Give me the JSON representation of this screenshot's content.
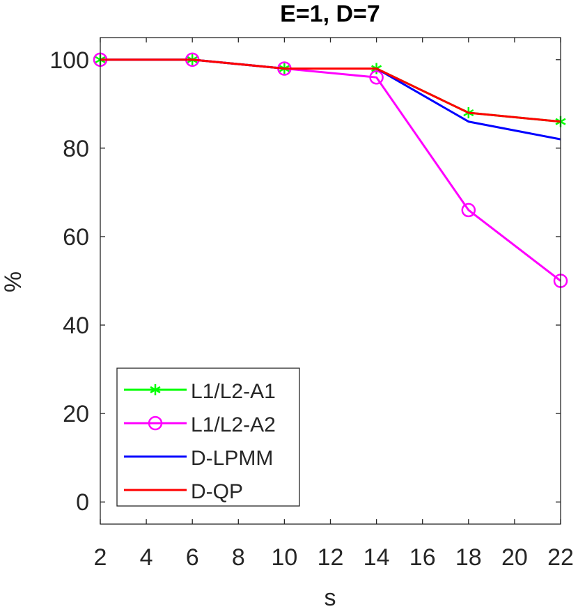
{
  "chart_data": {
    "type": "line",
    "title": "E=1, D=7",
    "xlabel": "s",
    "ylabel": "%",
    "xlim": [
      2,
      22
    ],
    "ylim": [
      -5,
      105
    ],
    "xticks": [
      2,
      4,
      6,
      8,
      10,
      12,
      14,
      16,
      18,
      20,
      22
    ],
    "yticks": [
      0,
      20,
      40,
      60,
      80,
      100
    ],
    "grid": false,
    "legend_position": "bottom-left",
    "x": [
      2,
      6,
      10,
      14,
      18,
      22
    ],
    "series": [
      {
        "name": "L1/L2-A1",
        "color": "#00ff00",
        "marker": "asterisk",
        "values": [
          100,
          100,
          98,
          98,
          88,
          86
        ]
      },
      {
        "name": "L1/L2-A2",
        "color": "#ff00ff",
        "marker": "circle",
        "values": [
          100,
          100,
          98,
          96,
          66,
          50
        ]
      },
      {
        "name": "D-LPMM",
        "color": "#0000ff",
        "marker": "none",
        "values": [
          100,
          100,
          98,
          98,
          86,
          82
        ]
      },
      {
        "name": "D-QP",
        "color": "#ff0000",
        "marker": "none",
        "values": [
          100,
          100,
          98,
          98,
          88,
          86
        ]
      }
    ]
  }
}
